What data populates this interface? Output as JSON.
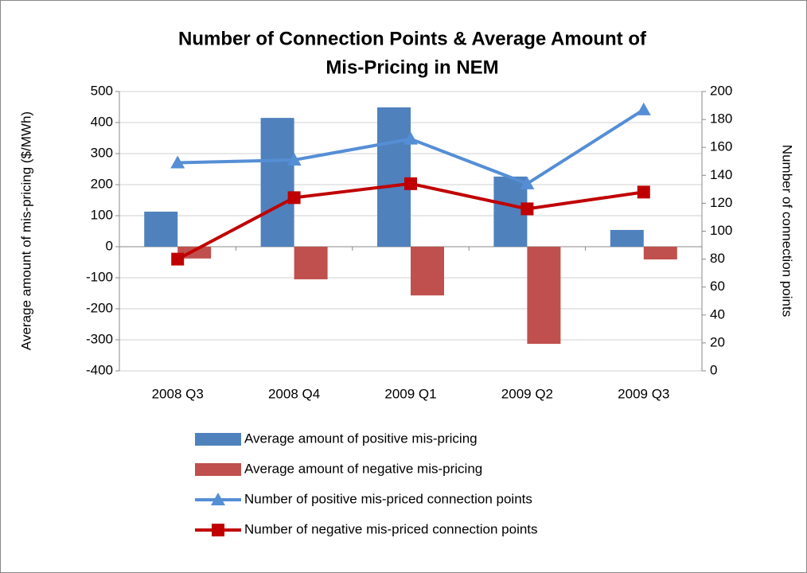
{
  "chart_data": {
    "type": "bar",
    "title": [
      "Number of Connection Points & Average Amount of",
      "Mis-Pricing in NEM"
    ],
    "y_label": "Average amount of mis-pricing ($/MWh)",
    "y2_label": "Number of connection points",
    "categories": [
      "2008 Q3",
      "2008 Q4",
      "2009 Q1",
      "2009 Q2",
      "2009 Q3"
    ],
    "ylim": [
      -400,
      500
    ],
    "yticks": [
      -400,
      -300,
      -200,
      -100,
      0,
      100,
      200,
      300,
      400,
      500
    ],
    "y2lim": [
      0,
      200
    ],
    "y2ticks": [
      0,
      20,
      40,
      60,
      80,
      100,
      120,
      140,
      160,
      180,
      200
    ],
    "grid": true,
    "legend": "bottom",
    "series": [
      {
        "name": "Average amount of positive mis-pricing",
        "type": "bar",
        "color": "#4f81bd",
        "values": [
          113,
          415,
          449,
          226,
          54
        ]
      },
      {
        "name": "Average amount of negative mis-pricing",
        "type": "bar",
        "color": "#c0504d",
        "values": [
          -38,
          -105,
          -157,
          -313,
          -41
        ]
      },
      {
        "name": "Number of positive mis-priced connection points",
        "type": "line",
        "marker": "triangle",
        "axis": "y2",
        "color": "#558ed5",
        "values": [
          149,
          151,
          166,
          134,
          187
        ]
      },
      {
        "name": "Number of negative mis-priced connection points",
        "type": "line",
        "marker": "square",
        "axis": "y2",
        "color": "#c00000",
        "values": [
          80,
          124,
          134,
          116,
          128
        ]
      }
    ]
  }
}
